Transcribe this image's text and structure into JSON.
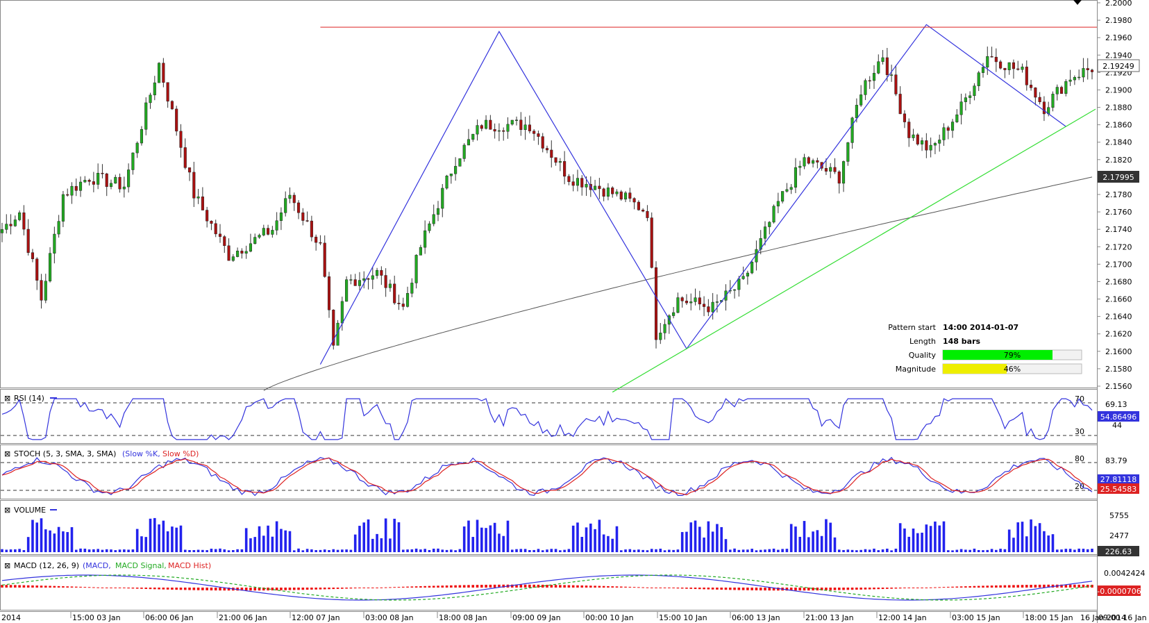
{
  "chart_data": {
    "type": "candlestick",
    "instrument_price_axis": {
      "ticks": [
        "2.2000",
        "2.1980",
        "2.1960",
        "2.1940",
        "2.1920",
        "2.1900",
        "2.1880",
        "2.1860",
        "2.1840",
        "2.1820",
        "2.1800",
        "2.1780",
        "2.1760",
        "2.1740",
        "2.1720",
        "2.1700",
        "2.1680",
        "2.1660",
        "2.1640",
        "2.1620",
        "2.1600",
        "2.1580",
        "2.1560"
      ],
      "range": [
        2.156,
        2.2
      ],
      "current_price_label": "2.19249",
      "ma_price_label": "2.17995"
    },
    "x_axis": {
      "ticks": [
        "2014",
        "15:00 03 Jan",
        "06:00 06 Jan",
        "21:00 06 Jan",
        "12:00 07 Jan",
        "03:00 08 Jan",
        "18:00 08 Jan",
        "09:00 09 Jan",
        "00:00 10 Jan",
        "15:00 10 Jan",
        "06:00 13 Jan",
        "21:00 13 Jan",
        "12:00 14 Jan",
        "03:00 15 Jan",
        "18:00 15 Jan",
        "09:00 16 Jan",
        "16 Jan 2014"
      ]
    },
    "pattern": {
      "start_label": "Pattern start",
      "start_value": "14:00 2014-01-07",
      "length_label": "Length",
      "length_value": "148 bars",
      "quality_label": "Quality",
      "quality_value": "79%",
      "quality_fraction": 0.79,
      "magnitude_label": "Magnitude",
      "magnitude_value": "46%",
      "magnitude_fraction": 0.46,
      "resistance_level": 2.1972,
      "pattern_points_price": [
        2.1585,
        2.1967,
        2.1603,
        2.1975,
        2.1858
      ]
    },
    "panels": {
      "rsi": {
        "title": "RSI (14)",
        "levels": [
          "70",
          "30"
        ],
        "axis_labels": [
          "69.13",
          "44"
        ],
        "value_label": "54.86496"
      },
      "stoch": {
        "title": "STOCH (5, 3, SMA, 3, SMA)",
        "legend_k": "(Slow %K,",
        "legend_d": "Slow %D)",
        "levels": [
          "80",
          "20"
        ],
        "axis_labels": [
          "83.79"
        ],
        "value_k_label": "27.81118",
        "value_d_label": "25.54583"
      },
      "volume": {
        "title": "VOLUME",
        "axis_labels": [
          "5755",
          "2477"
        ],
        "value_label": "226.63"
      },
      "macd": {
        "title": "MACD (12, 26, 9)",
        "legend_macd": "(MACD,",
        "legend_signal": "MACD Signal,",
        "legend_hist": "MACD Hist)",
        "axis_labels": [
          "0.0042424"
        ],
        "value_label": "-0.0000706"
      }
    },
    "colors": {
      "bull": "#22aa22",
      "bear": "#aa1111",
      "pattern_line": "#3333dd",
      "support_line": "#33dd33",
      "resistance_line": "#dd2222",
      "ma": "#555555",
      "quality_bar": "#00ee00",
      "magnitude_bar": "#eeee00"
    }
  }
}
